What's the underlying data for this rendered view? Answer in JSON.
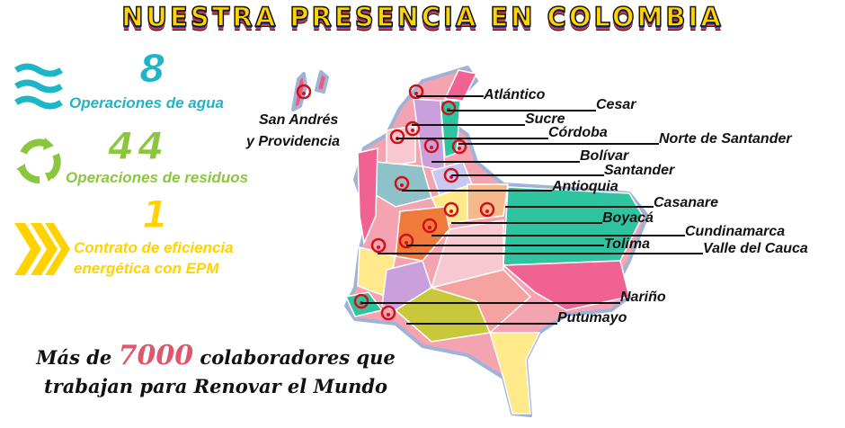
{
  "title": "NUESTRA PRESENCIA EN COLOMBIA",
  "stats": [
    {
      "number": "8",
      "label": "Operaciones de agua",
      "icon": "waves-icon",
      "color": "#1fb5c8"
    },
    {
      "number": "44",
      "label": "Operaciones de residuos",
      "icon": "recycle-icon",
      "color": "#8cc63f"
    },
    {
      "number": "1",
      "label_line1": "Contrato de eficiencia",
      "label_line2": "energética con EPM",
      "icon": "chevrons-icon",
      "color": "#ffd200"
    }
  ],
  "map": {
    "island_label_line1": "San Andrés",
    "island_label_line2": "y Providencia",
    "marker_color": "#d0101a",
    "departments": [
      "Atlántico",
      "Cesar",
      "Sucre",
      "Córdoba",
      "Norte de Santander",
      "Bolívar",
      "Santander",
      "Antioquia",
      "Casanare",
      "Boyacá",
      "Cundinamarca",
      "Tolima",
      "Valle del Cauca",
      "Nariño",
      "Putumayo"
    ]
  },
  "footer": {
    "pre": "Más de ",
    "number": "7000",
    "post": " colaboradores que",
    "line2": "trabajan para Renovar el Mundo",
    "accent": "#e0566c"
  }
}
